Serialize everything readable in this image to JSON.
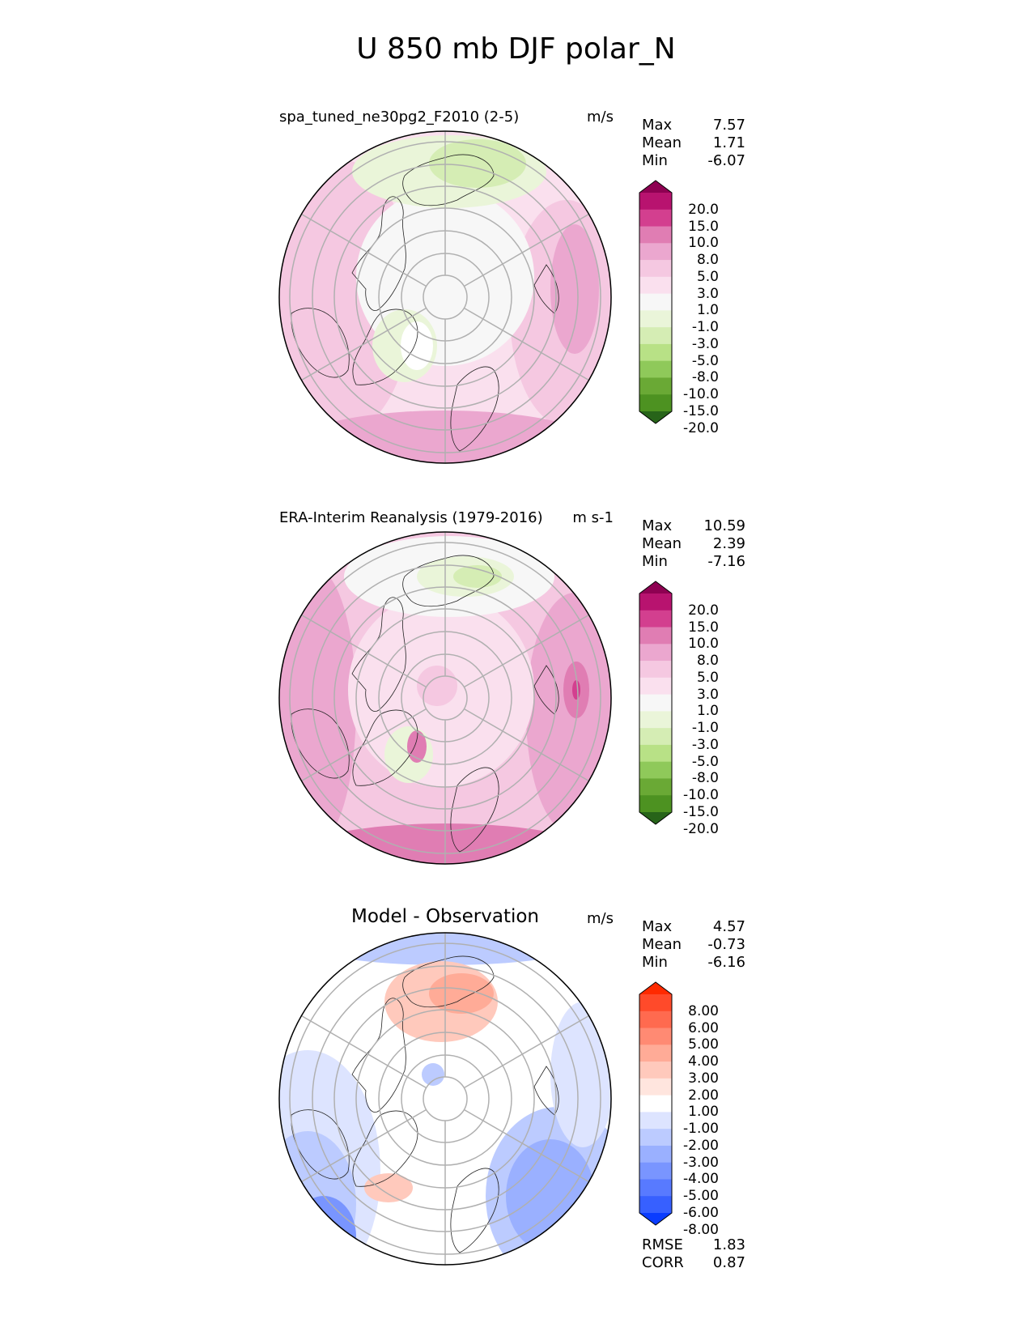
{
  "figure": {
    "title": "U 850 mb DJF polar_N"
  },
  "panels": [
    {
      "title": "spa_tuned_ne30pg2_F2010 (2-5)",
      "units": "m/s",
      "stats": [
        {
          "label": "Max",
          "value": "7.57"
        },
        {
          "label": "Mean",
          "value": "1.71"
        },
        {
          "label": "Min",
          "value": "-6.07"
        }
      ],
      "colorbar": {
        "labels": [
          "20.0",
          "15.0",
          "10.0",
          "8.0",
          "5.0",
          "3.0",
          "1.0",
          "-1.0",
          "-3.0",
          "-5.0",
          "-8.0",
          "-10.0",
          "-15.0",
          "-20.0"
        ],
        "colors": [
          "#8e0152",
          "#b8136f",
          "#d33f8f",
          "#e07db3",
          "#eba7cf",
          "#f5c8e1",
          "#fae0ee",
          "#f7f7f7",
          "#eaf5d9",
          "#d5edb4",
          "#b8e186",
          "#8fc95a",
          "#6aa935",
          "#4d9221",
          "#276419"
        ]
      }
    },
    {
      "title": "ERA-Interim Reanalysis (1979-2016)",
      "units": "m s-1",
      "stats": [
        {
          "label": "Max",
          "value": "10.59"
        },
        {
          "label": "Mean",
          "value": "2.39"
        },
        {
          "label": "Min",
          "value": "-7.16"
        }
      ],
      "colorbar": {
        "labels": [
          "20.0",
          "15.0",
          "10.0",
          "8.0",
          "5.0",
          "3.0",
          "1.0",
          "-1.0",
          "-3.0",
          "-5.0",
          "-8.0",
          "-10.0",
          "-15.0",
          "-20.0"
        ],
        "colors": [
          "#8e0152",
          "#b8136f",
          "#d33f8f",
          "#e07db3",
          "#eba7cf",
          "#f5c8e1",
          "#fae0ee",
          "#f7f7f7",
          "#eaf5d9",
          "#d5edb4",
          "#b8e186",
          "#8fc95a",
          "#6aa935",
          "#4d9221",
          "#276419"
        ]
      }
    },
    {
      "title": "Model - Observation",
      "units": "m/s",
      "stats": [
        {
          "label": "Max",
          "value": "4.57"
        },
        {
          "label": "Mean",
          "value": "-0.73"
        },
        {
          "label": "Min",
          "value": "-6.16"
        }
      ],
      "extra_stats": [
        {
          "label": "RMSE",
          "value": "1.83"
        },
        {
          "label": "CORR",
          "value": "0.87"
        }
      ],
      "colorbar": {
        "labels": [
          "8.00",
          "6.00",
          "5.00",
          "4.00",
          "3.00",
          "2.00",
          "1.00",
          "-1.00",
          "-2.00",
          "-3.00",
          "-4.00",
          "-5.00",
          "-6.00",
          "-8.00"
        ],
        "colors": [
          "#ff2a00",
          "#ff4a2a",
          "#ff6a4f",
          "#ff8a73",
          "#ffab97",
          "#ffc9bc",
          "#ffe5de",
          "#ffffff",
          "#dde4ff",
          "#bccbff",
          "#9ab0ff",
          "#7995ff",
          "#587aff",
          "#3760ff",
          "#0a3cff"
        ]
      }
    }
  ],
  "chart_data": [
    {
      "type": "heatmap",
      "title": "spa_tuned_ne30pg2_F2010 (2-5)",
      "projection": "north polar stereographic",
      "units": "m/s",
      "max": 7.57,
      "mean": 1.71,
      "min": -6.07,
      "levels": [
        -20,
        -15,
        -10,
        -8,
        -5,
        -3,
        -1,
        1,
        3,
        5,
        8,
        10,
        15,
        20
      ]
    },
    {
      "type": "heatmap",
      "title": "ERA-Interim Reanalysis (1979-2016)",
      "projection": "north polar stereographic",
      "units": "m s-1",
      "max": 10.59,
      "mean": 2.39,
      "min": -7.16,
      "levels": [
        -20,
        -15,
        -10,
        -8,
        -5,
        -3,
        -1,
        1,
        3,
        5,
        8,
        10,
        15,
        20
      ]
    },
    {
      "type": "heatmap",
      "title": "Model - Observation",
      "projection": "north polar stereographic",
      "units": "m/s",
      "max": 4.57,
      "mean": -0.73,
      "min": -6.16,
      "rmse": 1.83,
      "corr": 0.87,
      "levels": [
        -8,
        -6,
        -5,
        -4,
        -3,
        -2,
        -1,
        1,
        2,
        3,
        4,
        5,
        6,
        8
      ]
    }
  ]
}
